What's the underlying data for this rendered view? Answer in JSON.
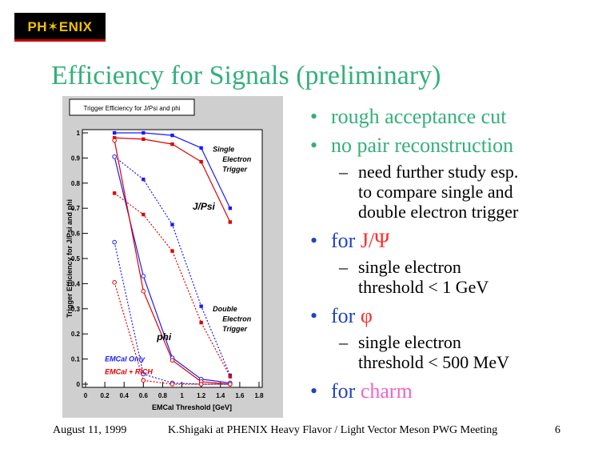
{
  "logo": {
    "text": "PH✶ENIX"
  },
  "title": "Efficiency for Signals (preliminary)",
  "bullets": [
    {
      "text": "rough acceptance cut",
      "color": "#33b07a",
      "sub": []
    },
    {
      "text": "no pair reconstruction",
      "color": "#33b07a",
      "sub": [
        "need further study esp.",
        "to compare single and",
        "double electron trigger"
      ]
    },
    {
      "prefix": "for ",
      "highlight": "J/Ψ",
      "color": "#2244bb",
      "highlight_color": "#ff2a2a",
      "sub": [
        "single electron",
        "threshold < 1 GeV"
      ]
    },
    {
      "prefix": "for ",
      "highlight": "φ",
      "color": "#2244bb",
      "highlight_color": "#ff2a2a",
      "sub": [
        "single electron",
        "threshold < 500 MeV"
      ]
    },
    {
      "prefix": "for ",
      "highlight": "charm",
      "color": "#2244bb",
      "highlight_color": "#f064c8",
      "sub": []
    }
  ],
  "footer": {
    "date": "August 11, 1999",
    "meeting": "K.Shigaki at PHENIX Heavy Flavor / Light Vector Meson PWG Meeting",
    "page": "6"
  },
  "chart_data": {
    "type": "line",
    "title": "Trigger Efficiency for J/Psi and phi",
    "xlabel": "EMCal Threshold [GeV]",
    "ylabel": "Trigger Efficiency for J/Psi and phi",
    "xlim": [
      0,
      1.8
    ],
    "ylim": [
      0,
      1.0
    ],
    "xticks": [
      "0",
      "0.2",
      "0.4",
      "0.6",
      "0.8",
      "1",
      "1.2",
      "1.4",
      "1.6",
      "1.8"
    ],
    "yticks": [
      "0",
      "0.1",
      "0.2",
      "0.3",
      "0.4",
      "0.5",
      "0.6",
      "0.7",
      "0.8",
      "0.9",
      "1"
    ],
    "grid": false,
    "annotations": [
      {
        "text": "Single",
        "x": 1.32,
        "y": 0.925,
        "color": "#000000"
      },
      {
        "text": "Electron",
        "x": 1.42,
        "y": 0.885,
        "color": "#000000"
      },
      {
        "text": "Trigger",
        "x": 1.42,
        "y": 0.845,
        "color": "#000000"
      },
      {
        "text": "J/Psi",
        "x": 1.11,
        "y": 0.695,
        "color": "#000000"
      },
      {
        "text": "Double",
        "x": 1.32,
        "y": 0.29,
        "color": "#000000"
      },
      {
        "text": "Electron",
        "x": 1.42,
        "y": 0.25,
        "color": "#000000"
      },
      {
        "text": "Trigger",
        "x": 1.42,
        "y": 0.21,
        "color": "#000000"
      },
      {
        "text": "phi",
        "x": 0.74,
        "y": 0.175,
        "color": "#000000"
      },
      {
        "text": "EMCal Only",
        "x": 0.2,
        "y": 0.09,
        "color": "#1a1aff"
      },
      {
        "text": "EMCal + RICH",
        "x": 0.2,
        "y": 0.04,
        "color": "#e00000"
      }
    ],
    "series": [
      {
        "color": "#1a1aff",
        "style": "solid",
        "marker": "square-filled",
        "x": [
          0.3,
          0.6,
          0.9,
          1.2,
          1.5
        ],
        "y": [
          1.0,
          1.0,
          0.99,
          0.94,
          0.7
        ]
      },
      {
        "color": "#e00000",
        "style": "solid",
        "marker": "square-filled",
        "x": [
          0.3,
          0.6,
          0.9,
          1.2,
          1.5
        ],
        "y": [
          0.98,
          0.975,
          0.955,
          0.885,
          0.645
        ]
      },
      {
        "color": "#1a1aff",
        "style": "dashed",
        "marker": "square-filled",
        "x": [
          0.3,
          0.6,
          0.9,
          1.2,
          1.5
        ],
        "y": [
          0.905,
          0.815,
          0.635,
          0.31,
          0.035
        ]
      },
      {
        "color": "#e00000",
        "style": "dashed",
        "marker": "square-filled",
        "x": [
          0.3,
          0.6,
          0.9,
          1.2,
          1.5
        ],
        "y": [
          0.76,
          0.675,
          0.53,
          0.245,
          0.03
        ]
      },
      {
        "color": "#1a1aff",
        "style": "solid",
        "marker": "circle-open",
        "x": [
          0.3,
          0.6,
          0.9,
          1.2,
          1.5
        ],
        "y": [
          0.905,
          0.43,
          0.105,
          0.02,
          0.005
        ]
      },
      {
        "color": "#e00000",
        "style": "solid",
        "marker": "circle-open",
        "x": [
          0.3,
          0.6,
          0.9,
          1.2,
          1.5
        ],
        "y": [
          0.97,
          0.37,
          0.095,
          0.01,
          0.0
        ]
      },
      {
        "color": "#1a1aff",
        "style": "dashed",
        "marker": "circle-open",
        "x": [
          0.3,
          0.6,
          0.9,
          1.2,
          1.5
        ],
        "y": [
          0.565,
          0.04,
          0.005,
          0.0,
          0.0
        ]
      },
      {
        "color": "#e00000",
        "style": "dashed",
        "marker": "circle-open",
        "x": [
          0.3,
          0.6,
          0.9,
          1.2,
          1.5
        ],
        "y": [
          0.405,
          0.015,
          0.0,
          0.0,
          0.0
        ]
      }
    ]
  }
}
